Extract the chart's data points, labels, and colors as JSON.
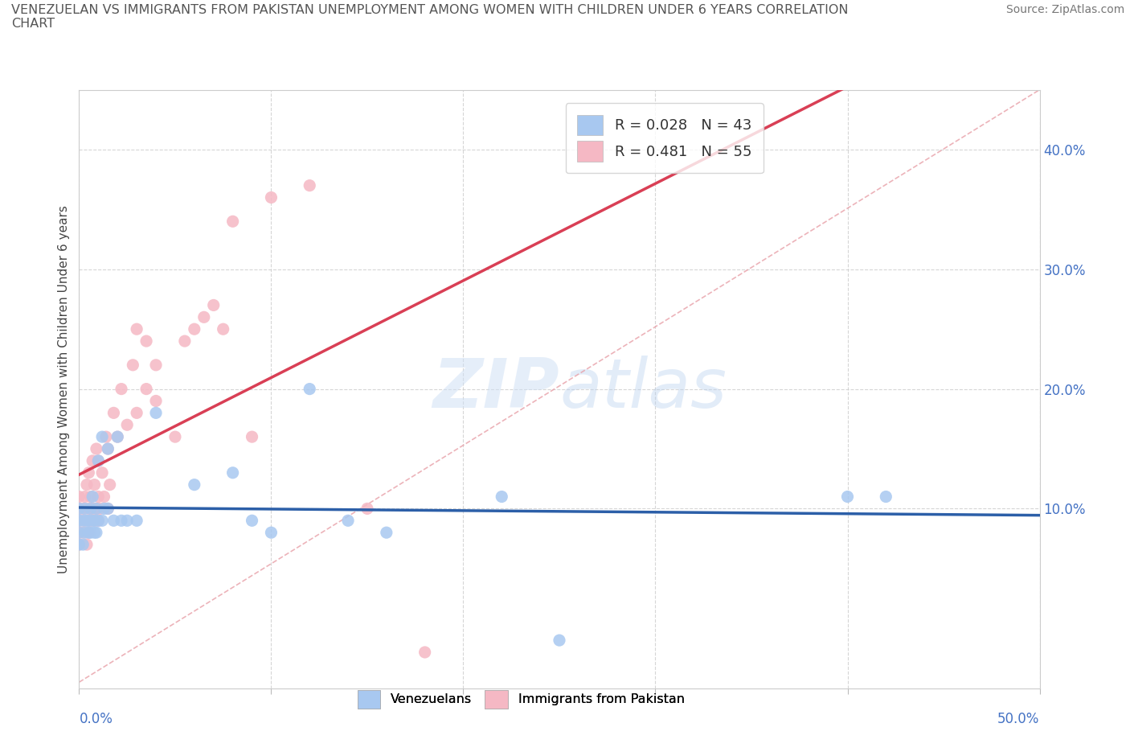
{
  "title": "VENEZUELAN VS IMMIGRANTS FROM PAKISTAN UNEMPLOYMENT AMONG WOMEN WITH CHILDREN UNDER 6 YEARS CORRELATION\nCHART",
  "source": "Source: ZipAtlas.com",
  "ylabel": "Unemployment Among Women with Children Under 6 years",
  "xlim": [
    0.0,
    0.5
  ],
  "ylim": [
    -0.05,
    0.45
  ],
  "watermark_zip": "ZIP",
  "watermark_atlas": "atlas",
  "legend_blue_label": "R = 0.028   N = 43",
  "legend_pink_label": "R = 0.481   N = 55",
  "venezuelan_color": "#a8c8f0",
  "pakistan_color": "#f5b8c4",
  "trendline_color_ven": "#2c5fa8",
  "trendline_color_pak": "#d93f55",
  "grid_color": "#cccccc",
  "yticks": [
    0.1,
    0.2,
    0.3,
    0.4
  ],
  "ytick_labels": [
    "10.0%",
    "20.0%",
    "30.0%",
    "40.0%"
  ],
  "venezuelan_R": 0.028,
  "pakistan_R": 0.481,
  "venezuelan_scatter_x": [
    0.0,
    0.0,
    0.0,
    0.0,
    0.002,
    0.002,
    0.003,
    0.003,
    0.004,
    0.005,
    0.005,
    0.006,
    0.006,
    0.007,
    0.007,
    0.008,
    0.008,
    0.009,
    0.009,
    0.01,
    0.01,
    0.012,
    0.012,
    0.013,
    0.015,
    0.015,
    0.018,
    0.02,
    0.022,
    0.025,
    0.03,
    0.04,
    0.06,
    0.08,
    0.09,
    0.1,
    0.12,
    0.14,
    0.16,
    0.22,
    0.25,
    0.4,
    0.42
  ],
  "venezuelan_scatter_y": [
    0.07,
    0.09,
    0.1,
    0.08,
    0.07,
    0.09,
    0.08,
    0.1,
    0.09,
    0.08,
    0.09,
    0.08,
    0.1,
    0.09,
    0.11,
    0.08,
    0.09,
    0.1,
    0.08,
    0.09,
    0.14,
    0.09,
    0.16,
    0.1,
    0.1,
    0.15,
    0.09,
    0.16,
    0.09,
    0.09,
    0.09,
    0.18,
    0.12,
    0.13,
    0.09,
    0.08,
    0.2,
    0.09,
    0.08,
    0.11,
    -0.01,
    0.11,
    0.11
  ],
  "pakistan_scatter_x": [
    0.0,
    0.0,
    0.0,
    0.0,
    0.0,
    0.002,
    0.002,
    0.003,
    0.003,
    0.004,
    0.004,
    0.005,
    0.005,
    0.005,
    0.006,
    0.006,
    0.007,
    0.007,
    0.008,
    0.008,
    0.009,
    0.009,
    0.01,
    0.01,
    0.01,
    0.011,
    0.012,
    0.013,
    0.014,
    0.015,
    0.015,
    0.016,
    0.018,
    0.02,
    0.022,
    0.025,
    0.028,
    0.03,
    0.03,
    0.035,
    0.035,
    0.04,
    0.04,
    0.05,
    0.055,
    0.06,
    0.065,
    0.07,
    0.075,
    0.08,
    0.09,
    0.1,
    0.12,
    0.15,
    0.18
  ],
  "pakistan_scatter_y": [
    0.07,
    0.08,
    0.09,
    0.1,
    0.11,
    0.08,
    0.1,
    0.09,
    0.11,
    0.07,
    0.12,
    0.08,
    0.1,
    0.13,
    0.09,
    0.11,
    0.1,
    0.14,
    0.09,
    0.12,
    0.1,
    0.15,
    0.09,
    0.11,
    0.14,
    0.1,
    0.13,
    0.11,
    0.16,
    0.1,
    0.15,
    0.12,
    0.18,
    0.16,
    0.2,
    0.17,
    0.22,
    0.18,
    0.25,
    0.2,
    0.24,
    0.22,
    0.19,
    0.16,
    0.24,
    0.25,
    0.26,
    0.27,
    0.25,
    0.34,
    0.16,
    0.36,
    0.37,
    0.1,
    -0.02
  ]
}
